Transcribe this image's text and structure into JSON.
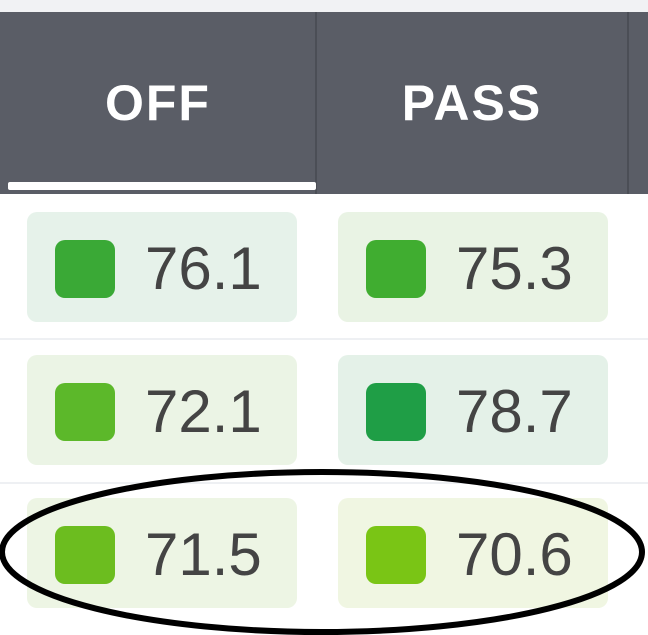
{
  "table": {
    "headers": [
      "OFF",
      "PASS"
    ],
    "rows": [
      [
        76.1,
        75.3
      ],
      [
        72.1,
        78.7
      ],
      [
        71.5,
        70.6
      ]
    ]
  }
}
